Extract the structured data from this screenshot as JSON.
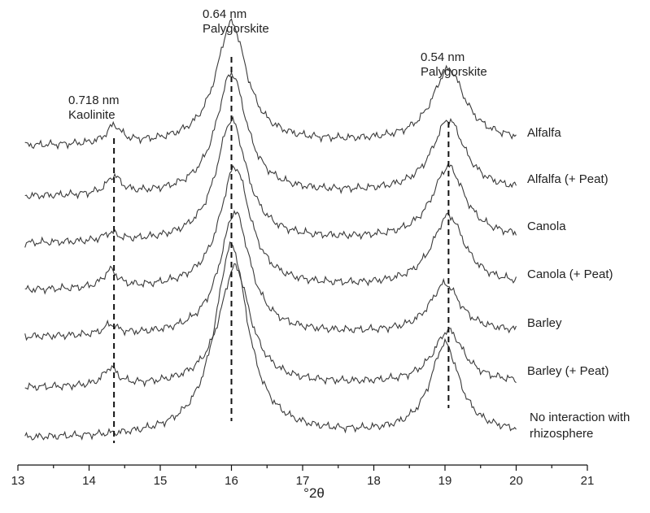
{
  "chart_data": {
    "type": "line",
    "xlabel": "°2θ",
    "ylabel": "",
    "xlim": [
      13,
      21
    ],
    "x_ticks": [
      13,
      14,
      15,
      16,
      17,
      18,
      19,
      20,
      21
    ],
    "series": [
      {
        "name": "Alfalfa",
        "baseline": 7.5,
        "peaks": [
          [
            14.35,
            0.45,
            0.12
          ],
          [
            16.0,
            3.1,
            0.26
          ],
          [
            19.05,
            1.85,
            0.28
          ]
        ]
      },
      {
        "name": "Alfalfa (+ Peat)",
        "baseline": 6.2,
        "peaks": [
          [
            14.35,
            0.45,
            0.12
          ],
          [
            16.0,
            3.1,
            0.26
          ],
          [
            19.05,
            1.85,
            0.28
          ]
        ]
      },
      {
        "name": "Canola",
        "baseline": 5.0,
        "peaks": [
          [
            14.3,
            0.2,
            0.12
          ],
          [
            16.0,
            3.1,
            0.26
          ],
          [
            19.05,
            1.85,
            0.28
          ]
        ]
      },
      {
        "name": "Canola (+ Peat)",
        "baseline": 3.8,
        "peaks": [
          [
            14.3,
            0.45,
            0.12
          ],
          [
            16.05,
            3.1,
            0.26
          ],
          [
            19.05,
            1.8,
            0.28
          ]
        ]
      },
      {
        "name": "Barley",
        "baseline": 2.6,
        "peaks": [
          [
            14.3,
            0.25,
            0.12
          ],
          [
            16.05,
            3.15,
            0.26
          ],
          [
            19.0,
            1.25,
            0.26
          ]
        ]
      },
      {
        "name": "Barley (+ Peat)",
        "baseline": 1.3,
        "peaks": [
          [
            14.3,
            0.45,
            0.12
          ],
          [
            16.05,
            3.05,
            0.26
          ],
          [
            19.05,
            1.35,
            0.26
          ]
        ]
      },
      {
        "name": "No interaction with rhizosphere",
        "baseline": 0.0,
        "peaks": [
          [
            16.0,
            4.9,
            0.28
          ],
          [
            19.0,
            2.3,
            0.25
          ]
        ]
      }
    ],
    "annotations": [
      {
        "x": 14.35,
        "lines": [
          "0.718 nm",
          "Kaolinite"
        ]
      },
      {
        "x": 16.0,
        "lines": [
          "0.64 nm",
          "Palygorskite"
        ]
      },
      {
        "x": 19.05,
        "lines": [
          "0.54 nm",
          "Palygorskite"
        ]
      }
    ],
    "series_labels": [
      {
        "series": 0,
        "lines": [
          "Alfalfa"
        ]
      },
      {
        "series": 1,
        "lines": [
          "Alfalfa (+ Peat)"
        ]
      },
      {
        "series": 2,
        "lines": [
          "Canola"
        ]
      },
      {
        "series": 3,
        "lines": [
          "Canola (+ Peat)"
        ]
      },
      {
        "series": 4,
        "lines": [
          "Barley"
        ]
      },
      {
        "series": 5,
        "lines": [
          "Barley (+ Peat)"
        ]
      },
      {
        "series": 6,
        "lines": [
          "No interaction with",
          "rhizosphere"
        ]
      }
    ],
    "grid": false,
    "legend": "labels at right end of each trace"
  }
}
